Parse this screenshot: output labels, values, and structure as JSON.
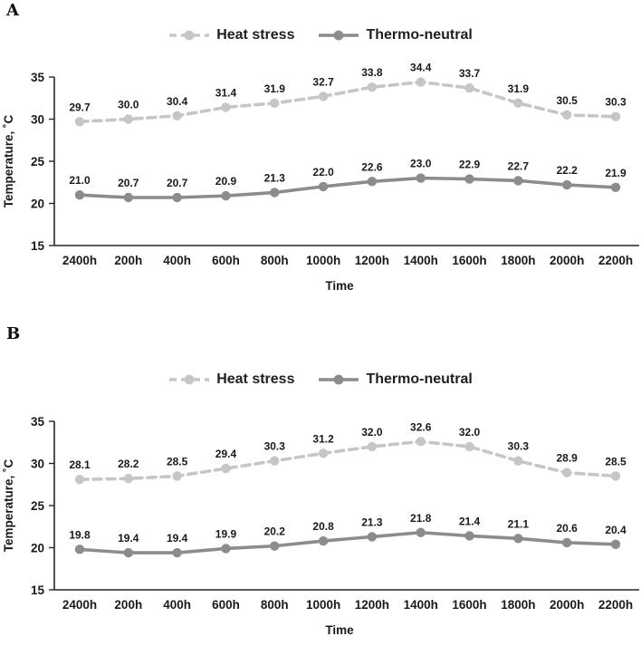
{
  "figure": {
    "background": "#ffffff"
  },
  "chart_data": [
    {
      "panel_label": "A",
      "type": "line",
      "xlabel": "Time",
      "ylabel": "Temperature, ˚C",
      "ylim": [
        15,
        35
      ],
      "yticks": [
        15,
        20,
        25,
        30,
        35
      ],
      "grid": false,
      "legend_position": "top-center",
      "axis_color": "#262626",
      "label_color": "#1a1a1a",
      "categories": [
        "2400h",
        "200h",
        "400h",
        "600h",
        "800h",
        "1000h",
        "1200h",
        "1400h",
        "1600h",
        "1800h",
        "2000h",
        "2200h"
      ],
      "series": [
        {
          "id": "heat-stress",
          "name": "Heat stress",
          "style": "dashed",
          "color": "#c6c6c6",
          "values": [
            29.7,
            30.0,
            30.4,
            31.4,
            31.9,
            32.7,
            33.8,
            34.4,
            33.7,
            31.9,
            30.5,
            30.3
          ]
        },
        {
          "id": "thermo-neutral",
          "name": "Thermo-neutral",
          "style": "solid",
          "color": "#8c8c8c",
          "values": [
            21.0,
            20.7,
            20.7,
            20.9,
            21.3,
            22.0,
            22.6,
            23.0,
            22.9,
            22.7,
            22.2,
            21.9
          ]
        }
      ]
    },
    {
      "panel_label": "B",
      "type": "line",
      "xlabel": "Time",
      "ylabel": "Temperature, ˚C",
      "ylim": [
        15,
        35
      ],
      "yticks": [
        15,
        20,
        25,
        30,
        35
      ],
      "grid": false,
      "legend_position": "top-center",
      "axis_color": "#262626",
      "label_color": "#1a1a1a",
      "categories": [
        "2400h",
        "200h",
        "400h",
        "600h",
        "800h",
        "1000h",
        "1200h",
        "1400h",
        "1600h",
        "1800h",
        "2000h",
        "2200h"
      ],
      "series": [
        {
          "id": "heat-stress",
          "name": "Heat stress",
          "style": "dashed",
          "color": "#c6c6c6",
          "values": [
            28.1,
            28.2,
            28.5,
            29.4,
            30.3,
            31.2,
            32.0,
            32.6,
            32.0,
            30.3,
            28.9,
            28.5
          ]
        },
        {
          "id": "thermo-neutral",
          "name": "Thermo-neutral",
          "style": "solid",
          "color": "#8c8c8c",
          "values": [
            19.8,
            19.4,
            19.4,
            19.9,
            20.2,
            20.8,
            21.3,
            21.8,
            21.4,
            21.1,
            20.6,
            20.4
          ]
        }
      ]
    }
  ]
}
